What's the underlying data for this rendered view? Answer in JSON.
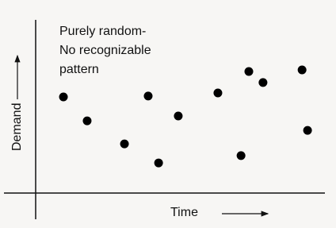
{
  "chart_data": {
    "type": "scatter",
    "annotations": [
      "Purely random-",
      "No recognizable",
      "pattern"
    ],
    "x_label": "Time",
    "y_label": "Demand",
    "x": [
      9.6,
      17.8,
      30.7,
      38.9,
      42.5,
      49.3,
      63.0,
      71.0,
      73.7,
      78.6,
      92.1,
      94.0
    ],
    "values": [
      55.5,
      41.7,
      28.4,
      56.0,
      17.4,
      44.5,
      57.8,
      21.6,
      70.2,
      63.8,
      71.1,
      36.2
    ],
    "color": "#000000",
    "xlim": [
      0,
      100
    ],
    "ylim": [
      0,
      100
    ]
  }
}
